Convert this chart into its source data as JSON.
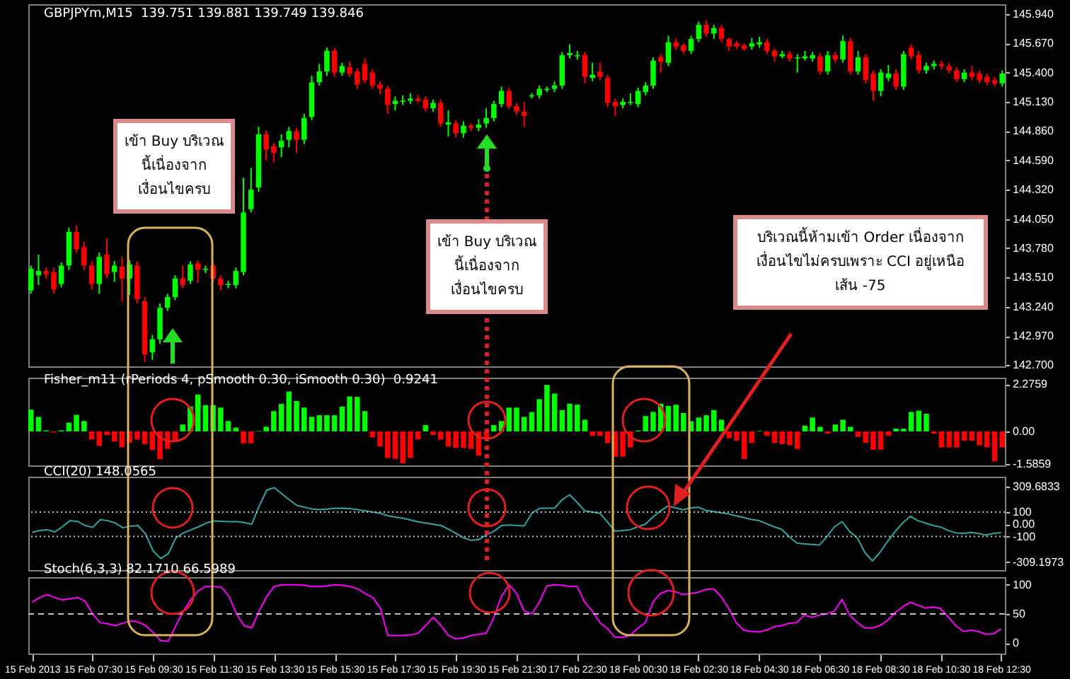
{
  "chart_data": [
    {
      "type": "candlestick",
      "title": "GBPJPYm,M15  139.751 139.881 139.749 139.846",
      "categories": [
        null,
        null,
        null,
        null,
        null,
        null,
        null,
        null,
        null,
        null,
        null,
        null,
        null,
        null,
        null,
        null,
        null,
        null,
        null,
        null,
        null,
        null,
        null,
        null,
        null,
        null,
        null,
        null,
        null,
        null,
        null,
        null,
        null,
        null,
        null,
        null,
        null,
        null,
        null,
        null,
        null,
        null,
        null,
        null,
        null,
        null,
        null,
        null,
        null,
        null,
        null,
        null,
        null,
        null,
        null,
        null,
        null,
        null,
        null,
        null,
        null,
        null,
        null,
        null,
        null,
        null,
        null,
        null,
        null,
        null,
        null,
        null,
        null,
        null,
        null,
        null,
        null,
        null,
        null,
        null,
        null,
        null,
        null,
        null,
        null,
        null,
        null,
        null,
        null,
        null,
        null,
        null,
        null,
        null,
        null,
        null,
        null,
        null,
        null,
        null,
        null,
        null,
        null,
        null,
        null,
        null,
        null,
        null,
        null,
        null,
        null,
        null,
        null,
        null,
        null,
        null,
        null,
        null,
        null,
        null,
        null,
        null,
        null,
        null,
        null,
        null,
        null,
        null,
        null
      ],
      "ohlc": [
        [
          143.39,
          143.62,
          143.36,
          143.59
        ],
        [
          143.53,
          143.72,
          143.44,
          143.57
        ],
        [
          143.57,
          143.6,
          143.5,
          143.54
        ],
        [
          143.56,
          143.6,
          143.36,
          143.4
        ],
        [
          143.45,
          143.65,
          143.42,
          143.62
        ],
        [
          143.62,
          143.97,
          143.58,
          143.93
        ],
        [
          143.93,
          143.99,
          143.74,
          143.77
        ],
        [
          143.79,
          143.84,
          143.58,
          143.62
        ],
        [
          143.62,
          143.66,
          143.4,
          143.45
        ],
        [
          143.45,
          143.74,
          143.36,
          143.7
        ],
        [
          143.72,
          143.87,
          143.5,
          143.54
        ],
        [
          143.56,
          143.66,
          143.47,
          143.62
        ],
        [
          143.61,
          143.7,
          143.29,
          143.5
        ],
        [
          143.5,
          143.67,
          143.35,
          143.63
        ],
        [
          143.62,
          143.66,
          143.27,
          143.31
        ],
        [
          143.29,
          143.33,
          142.73,
          142.8
        ],
        [
          142.82,
          142.98,
          142.75,
          142.94
        ],
        [
          142.94,
          143.27,
          142.9,
          143.23
        ],
        [
          143.23,
          143.36,
          143.2,
          143.33
        ],
        [
          143.33,
          143.53,
          143.3,
          143.5
        ],
        [
          143.5,
          143.62,
          143.41,
          143.44
        ],
        [
          143.48,
          143.66,
          143.45,
          143.63
        ],
        [
          143.64,
          143.67,
          143.46,
          143.58
        ],
        [
          143.58,
          143.62,
          143.55,
          143.59
        ],
        [
          143.62,
          143.65,
          143.47,
          143.5
        ],
        [
          143.5,
          143.53,
          143.39,
          143.44
        ],
        [
          143.44,
          143.48,
          143.41,
          143.45
        ],
        [
          143.44,
          143.6,
          143.41,
          143.57
        ],
        [
          143.56,
          144.43,
          143.53,
          144.11
        ],
        [
          144.14,
          144.52,
          144.11,
          144.32
        ],
        [
          144.34,
          144.9,
          144.3,
          144.83
        ],
        [
          144.83,
          144.87,
          144.59,
          144.69
        ],
        [
          144.72,
          144.75,
          144.57,
          144.66
        ],
        [
          144.71,
          144.83,
          144.62,
          144.77
        ],
        [
          144.78,
          144.9,
          144.71,
          144.86
        ],
        [
          144.86,
          144.89,
          144.66,
          144.78
        ],
        [
          144.78,
          145.02,
          144.74,
          144.98
        ],
        [
          144.99,
          145.37,
          144.96,
          145.31
        ],
        [
          145.31,
          145.48,
          145.28,
          145.41
        ],
        [
          145.41,
          145.63,
          145.37,
          145.6
        ],
        [
          145.6,
          145.63,
          145.36,
          145.4
        ],
        [
          145.4,
          145.49,
          145.37,
          145.46
        ],
        [
          145.45,
          145.5,
          145.36,
          145.39
        ],
        [
          145.41,
          145.44,
          145.25,
          145.29
        ],
        [
          145.48,
          145.53,
          145.3,
          145.33
        ],
        [
          145.4,
          145.43,
          145.25,
          145.28
        ],
        [
          145.29,
          145.32,
          145.2,
          145.25
        ],
        [
          145.25,
          145.28,
          145.02,
          145.1
        ],
        [
          145.11,
          145.18,
          145.05,
          145.14
        ],
        [
          145.13,
          145.19,
          145.1,
          145.14
        ],
        [
          145.14,
          145.21,
          145.11,
          145.16
        ],
        [
          145.16,
          145.19,
          145.12,
          145.14
        ],
        [
          145.15,
          145.18,
          145.04,
          145.07
        ],
        [
          145.07,
          145.15,
          145.04,
          145.12
        ],
        [
          145.12,
          145.15,
          144.9,
          144.93
        ],
        [
          144.92,
          145.05,
          144.81,
          144.94
        ],
        [
          144.93,
          144.96,
          144.8,
          144.84
        ],
        [
          144.84,
          144.95,
          144.8,
          144.91
        ],
        [
          144.91,
          144.93,
          144.86,
          144.89
        ],
        [
          144.89,
          144.97,
          144.86,
          144.92
        ],
        [
          144.93,
          145.07,
          144.89,
          144.98
        ],
        [
          144.98,
          145.14,
          144.95,
          145.11
        ],
        [
          145.11,
          145.27,
          145.08,
          145.23
        ],
        [
          145.23,
          145.26,
          145.06,
          145.09
        ],
        [
          145.09,
          145.12,
          145.01,
          145.04
        ],
        [
          145.04,
          145.13,
          144.9,
          145.0
        ],
        [
          145.18,
          145.21,
          145.16,
          145.19
        ],
        [
          145.19,
          145.28,
          145.16,
          145.25
        ],
        [
          145.24,
          145.27,
          145.22,
          145.25
        ],
        [
          145.25,
          145.32,
          145.22,
          145.28
        ],
        [
          145.28,
          145.59,
          145.25,
          145.56
        ],
        [
          145.56,
          145.66,
          145.53,
          145.58
        ],
        [
          145.55,
          145.6,
          145.52,
          145.56
        ],
        [
          145.56,
          145.59,
          145.3,
          145.36
        ],
        [
          145.35,
          145.49,
          145.32,
          145.38
        ],
        [
          145.41,
          145.49,
          145.33,
          145.36
        ],
        [
          145.35,
          145.38,
          145.08,
          145.12
        ],
        [
          145.13,
          145.16,
          145.0,
          145.09
        ],
        [
          145.1,
          145.16,
          145.07,
          145.13
        ],
        [
          145.12,
          145.21,
          145.1,
          145.13
        ],
        [
          145.11,
          145.26,
          145.08,
          145.23
        ],
        [
          145.22,
          145.31,
          145.19,
          145.28
        ],
        [
          145.28,
          145.54,
          145.25,
          145.51
        ],
        [
          145.54,
          145.57,
          145.4,
          145.5
        ],
        [
          145.49,
          145.74,
          145.46,
          145.68
        ],
        [
          145.68,
          145.71,
          145.61,
          145.64
        ],
        [
          145.65,
          145.67,
          145.57,
          145.6
        ],
        [
          145.6,
          145.74,
          145.57,
          145.71
        ],
        [
          145.71,
          145.87,
          145.68,
          145.84
        ],
        [
          145.84,
          145.88,
          145.73,
          145.76
        ],
        [
          145.76,
          145.84,
          145.71,
          145.81
        ],
        [
          145.81,
          145.84,
          145.68,
          145.71
        ],
        [
          145.71,
          145.72,
          145.6,
          145.64
        ],
        [
          145.67,
          145.69,
          145.62,
          145.64
        ],
        [
          145.65,
          145.67,
          145.6,
          145.62
        ],
        [
          145.64,
          145.72,
          145.61,
          145.67
        ],
        [
          145.66,
          145.73,
          145.63,
          145.68
        ],
        [
          145.68,
          145.71,
          145.57,
          145.6
        ],
        [
          145.6,
          145.62,
          145.5,
          145.55
        ],
        [
          145.55,
          145.6,
          145.53,
          145.57
        ],
        [
          145.57,
          145.6,
          145.5,
          145.53
        ],
        [
          145.53,
          145.57,
          145.4,
          145.54
        ],
        [
          145.53,
          145.6,
          145.51,
          145.55
        ],
        [
          145.53,
          145.59,
          145.5,
          145.56
        ],
        [
          145.55,
          145.58,
          145.38,
          145.41
        ],
        [
          145.41,
          145.6,
          145.38,
          145.56
        ],
        [
          145.56,
          145.59,
          145.49,
          145.52
        ],
        [
          145.52,
          145.74,
          145.49,
          145.69
        ],
        [
          145.69,
          145.72,
          145.38,
          145.41
        ],
        [
          145.41,
          145.6,
          145.38,
          145.54
        ],
        [
          145.54,
          145.57,
          145.3,
          145.33
        ],
        [
          145.39,
          145.42,
          145.14,
          145.23
        ],
        [
          145.23,
          145.43,
          145.18,
          145.4
        ],
        [
          145.35,
          145.47,
          145.32,
          145.39
        ],
        [
          145.39,
          145.43,
          145.24,
          145.27
        ],
        [
          145.27,
          145.6,
          145.24,
          145.57
        ],
        [
          145.63,
          145.66,
          145.52,
          145.55
        ],
        [
          145.56,
          145.6,
          145.39,
          145.42
        ],
        [
          145.42,
          145.49,
          145.39,
          145.46
        ],
        [
          145.46,
          145.51,
          145.43,
          145.48
        ],
        [
          145.48,
          145.51,
          145.43,
          145.46
        ],
        [
          145.46,
          145.49,
          145.39,
          145.42
        ],
        [
          145.42,
          145.45,
          145.31,
          145.34
        ],
        [
          145.34,
          145.43,
          145.31,
          145.4
        ],
        [
          145.4,
          145.46,
          145.33,
          145.36
        ],
        [
          145.39,
          145.42,
          145.3,
          145.33
        ],
        [
          145.36,
          145.39,
          145.28,
          145.31
        ],
        [
          145.33,
          145.36,
          145.27,
          145.3
        ],
        [
          145.3,
          145.42,
          145.27,
          145.39
        ]
      ],
      "colors": [
        "#00ff00",
        "#00ff00",
        "#ff0000",
        "#ff0000",
        "#00ff00",
        "#00ff00",
        "#ff0000",
        "#ff0000",
        "#ff0000",
        "#00ff00",
        "#ff0000",
        "#00ff00",
        "#ff0000",
        "#00ff00",
        "#ff0000",
        "#ff0000",
        "#00ff00",
        "#00ff00",
        "#00ff00",
        "#00ff00",
        "#ff0000",
        "#00ff00",
        "#ff0000",
        "#00ff00",
        "#ff0000",
        "#ff0000",
        "#00ff00",
        "#00ff00",
        "#00ff00",
        "#00ff00",
        "#00ff00",
        "#ff0000",
        "#ff0000",
        "#00ff00",
        "#00ff00",
        "#ff0000",
        "#00ff00",
        "#00ff00",
        "#00ff00",
        "#00ff00",
        "#ff0000",
        "#00ff00",
        "#ff0000",
        "#ff0000",
        "#ff0000",
        "#ff0000",
        "#ff0000",
        "#ff0000",
        "#00ff00",
        "#00ff00",
        "#00ff00",
        "#ff0000",
        "#ff0000",
        "#00ff00",
        "#ff0000",
        "#00ff00",
        "#ff0000",
        "#00ff00",
        "#ff0000",
        "#00ff00",
        "#00ff00",
        "#00ff00",
        "#00ff00",
        "#ff0000",
        "#ff0000",
        "#ff0000",
        "#00ff00",
        "#00ff00",
        "#00ff00",
        "#00ff00",
        "#00ff00",
        "#00ff00",
        "#00ff00",
        "#ff0000",
        "#00ff00",
        "#ff0000",
        "#ff0000",
        "#ff0000",
        "#00ff00",
        "#00ff00",
        "#00ff00",
        "#00ff00",
        "#00ff00",
        "#ff0000",
        "#00ff00",
        "#ff0000",
        "#ff0000",
        "#00ff00",
        "#00ff00",
        "#ff0000",
        "#00ff00",
        "#ff0000",
        "#ff0000",
        "#ff0000",
        "#ff0000",
        "#00ff00",
        "#00ff00",
        "#ff0000",
        "#ff0000",
        "#00ff00",
        "#ff0000",
        "#00ff00",
        "#00ff00",
        "#00ff00",
        "#ff0000",
        "#00ff00",
        "#ff0000",
        "#00ff00",
        "#ff0000",
        "#00ff00",
        "#ff0000",
        "#ff0000",
        "#00ff00",
        "#00ff00",
        "#ff0000",
        "#00ff00",
        "#ff0000",
        "#ff0000",
        "#00ff00",
        "#00ff00",
        "#ff0000",
        "#ff0000",
        "#ff0000",
        "#00ff00",
        "#ff0000",
        "#ff0000",
        "#ff0000",
        "#ff0000",
        "#00ff00"
      ],
      "ylim": [
        142.69,
        146.03
      ],
      "yticks": [
        {
          "value": 145.94,
          "label": "145.940"
        },
        {
          "value": 145.67,
          "label": "145.670"
        },
        {
          "value": 145.4,
          "label": "145.400"
        },
        {
          "value": 145.13,
          "label": "145.130"
        },
        {
          "value": 144.86,
          "label": "144.860"
        },
        {
          "value": 144.59,
          "label": "144.590"
        },
        {
          "value": 144.32,
          "label": "144.320"
        },
        {
          "value": 144.05,
          "label": "144.050"
        },
        {
          "value": 143.78,
          "label": "143.780"
        },
        {
          "value": 143.51,
          "label": "143.510"
        },
        {
          "value": 143.24,
          "label": "143.240"
        },
        {
          "value": 142.97,
          "label": "142.970"
        },
        {
          "value": 142.7,
          "label": "142.700"
        }
      ],
      "tick_labels": "y",
      "annotations": [
        "เข้า Buy บริเวณ\nนี้เนื่องจาก\nเงื่อนไขครบ",
        "เข้า Buy บริเวณ\nนี้เนื่องจาก\nเงื่อนไขครบ",
        "บริเวณนี้ห้ามเข้า Order เนื่องจาก\nเงื่อนไขไม่ครบเพราะ CCI อยู่เหนือ\nเส้น -75"
      ]
    },
    {
      "type": "bar",
      "title": "Fisher_m11 (rPeriods 4, pSmooth 0.30, iSmooth 0.30)  0.9241",
      "categories": [
        null,
        null,
        null,
        null,
        null,
        null,
        null,
        null,
        null,
        null,
        null,
        null,
        null,
        null,
        null,
        null,
        null,
        null,
        null,
        null,
        null,
        null,
        null,
        null,
        null,
        null,
        null,
        null,
        null,
        null,
        null,
        null,
        null,
        null,
        null,
        null,
        null,
        null,
        null,
        null,
        null,
        null,
        null,
        null,
        null,
        null,
        null,
        null,
        null,
        null,
        null,
        null,
        null,
        null,
        null,
        null,
        null,
        null,
        null,
        null,
        null,
        null,
        null,
        null,
        null,
        null,
        null,
        null,
        null,
        null,
        null,
        null,
        null,
        null,
        null,
        null,
        null,
        null,
        null,
        null,
        null,
        null,
        null,
        null,
        null,
        null,
        null,
        null,
        null,
        null,
        null,
        null,
        null,
        null,
        null,
        null,
        null,
        null,
        null,
        null,
        null,
        null,
        null,
        null,
        null,
        null,
        null,
        null,
        null,
        null,
        null,
        null,
        null,
        null,
        null,
        null,
        null,
        null,
        null,
        null,
        null,
        null,
        null,
        null,
        null,
        null,
        null,
        null,
        null
      ],
      "values": [
        1.05,
        0.7,
        0.05,
        -0.05,
        0.05,
        0.42,
        0.8,
        0.5,
        -0.4,
        -0.7,
        -0.18,
        -0.5,
        -0.78,
        -0.55,
        -0.4,
        -0.62,
        -0.9,
        -1.35,
        -0.85,
        -0.45,
        0.33,
        1.2,
        1.78,
        1.27,
        1.27,
        1.15,
        0.5,
        0.18,
        -0.58,
        -0.58,
        0.02,
        0.22,
        0.98,
        1.33,
        1.93,
        1.47,
        1.15,
        0.7,
        0.78,
        0.78,
        0.78,
        1.2,
        1.69,
        1.67,
        0.98,
        -0.29,
        -0.73,
        -1.29,
        -1.33,
        -1.55,
        -1.29,
        -0.4,
        0.3,
        -0.18,
        -0.4,
        -0.73,
        -0.8,
        -0.8,
        -0.85,
        -1.18,
        -0.29,
        0.3,
        0.5,
        1.15,
        1.15,
        0.7,
        0.93,
        1.56,
        2.25,
        1.83,
        1.03,
        1.34,
        1.29,
        0.56,
        -0.22,
        -0.22,
        -0.56,
        -1.23,
        -1.23,
        -0.78,
        0.04,
        0.74,
        0.94,
        1.34,
        1.23,
        1.29,
        0.89,
        0.49,
        0.67,
        0.78,
        1.03,
        0.56,
        -0.33,
        -0.45,
        -1.34,
        -0.56,
        0.02,
        -0.22,
        -0.56,
        -0.62,
        -0.67,
        -0.85,
        0.27,
        0.67,
        0.22,
        -0.11,
        0.33,
        0.56,
        0.22,
        -0.27,
        -0.56,
        -0.89,
        -0.89,
        -0.22,
        0.13,
        0.13,
        0.94,
        1.0,
        0.85,
        -0.11,
        -0.78,
        -0.78,
        -0.78,
        -0.45,
        -0.45,
        -0.67,
        -0.78,
        -1.45,
        -0.78
      ],
      "colors": [
        "#00ff00",
        "#00ff00",
        "#00ff00",
        "#ff0000",
        "#00ff00",
        "#00ff00",
        "#00ff00",
        "#00ff00",
        "#ff0000",
        "#ff0000",
        "#ff0000",
        "#ff0000",
        "#ff0000",
        "#ff0000",
        "#ff0000",
        "#ff0000",
        "#ff0000",
        "#ff0000",
        "#ff0000",
        "#ff0000",
        "#00ff00",
        "#00ff00",
        "#00ff00",
        "#00ff00",
        "#00ff00",
        "#00ff00",
        "#00ff00",
        "#00ff00",
        "#ff0000",
        "#ff0000",
        "#00ff00",
        "#00ff00",
        "#00ff00",
        "#00ff00",
        "#00ff00",
        "#00ff00",
        "#00ff00",
        "#00ff00",
        "#00ff00",
        "#00ff00",
        "#00ff00",
        "#00ff00",
        "#00ff00",
        "#00ff00",
        "#00ff00",
        "#ff0000",
        "#ff0000",
        "#ff0000",
        "#ff0000",
        "#ff0000",
        "#ff0000",
        "#ff0000",
        "#00ff00",
        "#ff0000",
        "#ff0000",
        "#ff0000",
        "#ff0000",
        "#ff0000",
        "#ff0000",
        "#ff0000",
        "#ff0000",
        "#00ff00",
        "#00ff00",
        "#00ff00",
        "#00ff00",
        "#00ff00",
        "#00ff00",
        "#00ff00",
        "#00ff00",
        "#00ff00",
        "#00ff00",
        "#00ff00",
        "#00ff00",
        "#00ff00",
        "#ff0000",
        "#ff0000",
        "#ff0000",
        "#ff0000",
        "#ff0000",
        "#ff0000",
        "#00ff00",
        "#00ff00",
        "#00ff00",
        "#00ff00",
        "#00ff00",
        "#00ff00",
        "#00ff00",
        "#00ff00",
        "#00ff00",
        "#00ff00",
        "#00ff00",
        "#00ff00",
        "#ff0000",
        "#ff0000",
        "#ff0000",
        "#ff0000",
        "#00ff00",
        "#ff0000",
        "#ff0000",
        "#ff0000",
        "#ff0000",
        "#ff0000",
        "#00ff00",
        "#00ff00",
        "#00ff00",
        "#ff0000",
        "#00ff00",
        "#00ff00",
        "#00ff00",
        "#ff0000",
        "#ff0000",
        "#ff0000",
        "#ff0000",
        "#ff0000",
        "#00ff00",
        "#00ff00",
        "#00ff00",
        "#00ff00",
        "#00ff00",
        "#ff0000",
        "#ff0000",
        "#ff0000",
        "#ff0000",
        "#ff0000",
        "#ff0000",
        "#ff0000",
        "#ff0000",
        "#ff0000",
        "#ff0000"
      ],
      "ylim": [
        -1.65,
        2.6
      ],
      "yticks": [
        2.2759,
        {
          "value": 0,
          "label": "0.00"
        },
        -1.5859
      ],
      "tick_labels": "y"
    },
    {
      "type": "line",
      "title": "CCI(20) 148.0565",
      "categories": [
        null,
        null,
        null,
        null,
        null,
        null,
        null,
        null,
        null,
        null,
        null,
        null,
        null,
        null,
        null,
        null,
        null,
        null,
        null,
        null,
        null,
        null,
        null,
        null,
        null,
        null,
        null,
        null,
        null,
        null,
        null,
        null,
        null,
        null,
        null,
        null,
        null,
        null,
        null,
        null,
        null,
        null,
        null,
        null,
        null,
        null,
        null,
        null,
        null,
        null,
        null,
        null,
        null,
        null,
        null,
        null,
        null,
        null,
        null,
        null,
        null,
        null,
        null,
        null,
        null,
        null,
        null,
        null,
        null,
        null,
        null,
        null,
        null,
        null,
        null,
        null,
        null,
        null,
        null,
        null,
        null,
        null,
        null,
        null,
        null,
        null,
        null,
        null,
        null,
        null,
        null,
        null,
        null,
        null,
        null,
        null,
        null,
        null,
        null,
        null,
        null,
        null,
        null,
        null,
        null,
        null,
        null,
        null,
        null,
        null,
        null,
        null,
        null,
        null,
        null,
        null,
        null,
        null,
        null,
        null,
        null,
        null,
        null,
        null,
        null,
        null,
        null,
        null,
        null
      ],
      "series": [
        {
          "color": "#2fa5a5",
          "values": [
            -66,
            -50,
            -44,
            -62,
            -20,
            30,
            24,
            -10,
            -25,
            38,
            30,
            10,
            -28,
            -15,
            -10,
            -80,
            -220,
            -280,
            -240,
            -110,
            -70,
            -45,
            -20,
            10,
            28,
            25,
            22,
            22,
            15,
            0,
            150,
            280,
            300,
            250,
            200,
            154,
            140,
            125,
            120,
            125,
            130,
            132,
            128,
            120,
            110,
            100,
            90,
            70,
            60,
            50,
            35,
            20,
            10,
            0,
            -10,
            -40,
            -75,
            -110,
            -132,
            -125,
            -88,
            -57,
            -10,
            -5,
            -10,
            -13,
            90,
            130,
            132,
            132,
            200,
            242,
            180,
            110,
            100,
            90,
            20,
            -57,
            -50,
            -44,
            -20,
            0,
            60,
            110,
            150,
            135,
            119,
            135,
            140,
            115,
            105,
            95,
            85,
            70,
            55,
            40,
            31,
            5,
            -20,
            -40,
            -100,
            -154,
            -160,
            -165,
            -170,
            -100,
            -20,
            22,
            -60,
            -110,
            -230,
            -300,
            -230,
            -140,
            -60,
            10,
            66,
            30,
            10,
            -10,
            -22,
            -50,
            -70,
            -75,
            -66,
            -75,
            -88,
            -75,
            -66
          ]
        }
      ],
      "ylim": [
        -375,
        390
      ],
      "yticks": [
        309.6833,
        100,
        {
          "value": 0,
          "label": "0.00"
        },
        -100,
        -309.1973
      ],
      "ref_lines": [
        {
          "axis": "y",
          "value": 100,
          "color": "#c0c0c0",
          "line_style": "dotted"
        },
        {
          "axis": "y",
          "value": -100,
          "color": "#c0c0c0",
          "line_style": "dotted"
        }
      ],
      "tick_labels": "y"
    },
    {
      "type": "line",
      "title": "Stoch(6,3,3) 82.1710 66.5989",
      "categories": [
        "15 Feb 2013",
        null,
        null,
        null,
        null,
        null,
        null,
        null,
        "15 Feb 07:30",
        null,
        null,
        null,
        null,
        null,
        null,
        null,
        "15 Feb 09:30",
        null,
        null,
        null,
        null,
        null,
        null,
        null,
        "15 Feb 11:30",
        null,
        null,
        null,
        null,
        null,
        null,
        null,
        "15 Feb 13:30",
        null,
        null,
        null,
        null,
        null,
        null,
        null,
        "15 Feb 15:30",
        null,
        null,
        null,
        null,
        null,
        null,
        null,
        "15 Feb 17:30",
        null,
        null,
        null,
        null,
        null,
        null,
        null,
        "15 Feb 19:30",
        null,
        null,
        null,
        null,
        null,
        null,
        null,
        "15 Feb 21:30",
        null,
        null,
        null,
        null,
        null,
        null,
        null,
        "17 Feb 22:30",
        null,
        null,
        null,
        null,
        null,
        null,
        null,
        "18 Feb 00:30",
        null,
        null,
        null,
        null,
        null,
        null,
        null,
        "18 Feb 02:30",
        null,
        null,
        null,
        null,
        null,
        null,
        null,
        "18 Feb 04:30",
        null,
        null,
        null,
        null,
        null,
        null,
        null,
        "18 Feb 06:30",
        null,
        null,
        null,
        null,
        null,
        null,
        null,
        "18 Feb 08:30",
        null,
        null,
        null,
        null,
        null,
        null,
        null,
        "18 Feb 10:30",
        null,
        null,
        null,
        null,
        null,
        null,
        null,
        "18 Feb 12:30"
      ],
      "series": [
        {
          "color": "#ff00ff",
          "values": [
            70,
            78,
            83,
            78,
            74,
            76,
            78,
            72,
            50,
            35,
            33,
            30,
            34,
            38,
            36,
            30,
            18,
            4,
            3,
            30,
            55,
            75,
            90,
            97,
            97,
            96,
            80,
            50,
            30,
            26,
            55,
            80,
            97,
            100,
            100,
            100,
            99,
            97,
            97,
            98,
            100,
            99,
            97,
            93,
            85,
            78,
            60,
            13,
            13,
            13,
            14,
            17,
            30,
            44,
            30,
            13,
            7,
            9,
            13,
            15,
            17,
            44,
            80,
            100,
            85,
            55,
            50,
            70,
            98,
            100,
            99,
            97,
            97,
            70,
            55,
            35,
            25,
            10,
            10,
            13,
            25,
            35,
            70,
            85,
            90,
            88,
            83,
            85,
            87,
            92,
            93,
            80,
            60,
            35,
            22,
            20,
            19,
            22,
            28,
            30,
            34,
            35,
            48,
            44,
            48,
            50,
            55,
            75,
            48,
            35,
            26,
            26,
            30,
            39,
            52,
            62,
            70,
            65,
            60,
            62,
            59,
            45,
            30,
            20,
            22,
            20,
            15,
            16,
            24
          ]
        }
      ],
      "ylim": [
        -18,
        113
      ],
      "yticks": [
        100,
        50,
        0
      ],
      "ref_lines": [
        {
          "axis": "y",
          "value": 50,
          "color": "#c0c0c0",
          "line_style": "dashed"
        }
      ]
    }
  ]
}
